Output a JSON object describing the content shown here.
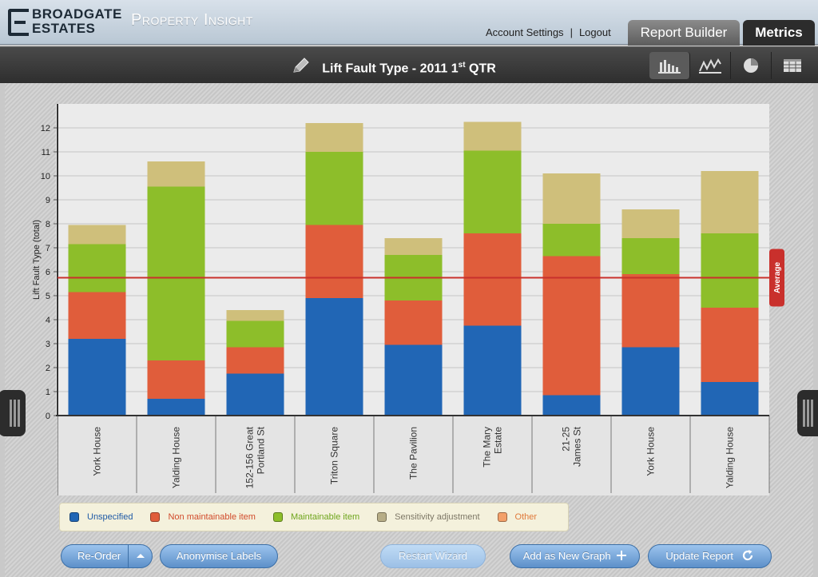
{
  "header": {
    "logo_line1": "BROADGATE",
    "logo_line2": "ESTATES",
    "app_title": "Property Insight",
    "account_settings": "Account Settings",
    "separator": "|",
    "logout": "Logout",
    "tabs": {
      "report_builder": "Report Builder",
      "metrics": "Metrics"
    }
  },
  "toolbar": {
    "title_prefix": "Lift Fault Type - 2011 1",
    "title_sup": "st",
    "title_suffix": " QTR",
    "icons": [
      "bar-chart-icon",
      "line-chart-icon",
      "pie-chart-icon",
      "table-icon"
    ]
  },
  "chart_data": {
    "type": "bar",
    "stacked": true,
    "ylabel": "Lift Fault Type (total)",
    "ylim": [
      0,
      13
    ],
    "yticks": [
      0,
      1,
      2,
      3,
      4,
      5,
      6,
      7,
      8,
      9,
      10,
      11,
      12
    ],
    "categories": [
      "York House",
      "Yalding House",
      "152-156 Great Portland St",
      "Triton Square",
      "The Pavilion",
      "The Mary Estate",
      "21-25 James St",
      "York House",
      "Yalding House"
    ],
    "category_lines": [
      [
        "York House"
      ],
      [
        "Yalding House"
      ],
      [
        "152-156 Great",
        "Portland St"
      ],
      [
        "Triton Square"
      ],
      [
        "The Pavilion"
      ],
      [
        "The Mary",
        "Estate"
      ],
      [
        "21-25",
        "James St"
      ],
      [
        "York House"
      ],
      [
        "Yalding House"
      ]
    ],
    "series": [
      {
        "name": "Unspecified",
        "color": "#2166b5",
        "values": [
          3.2,
          0.7,
          1.75,
          4.9,
          2.95,
          3.75,
          0.85,
          2.85,
          1.4
        ]
      },
      {
        "name": "Non maintainable item",
        "color": "#e05d3b",
        "values": [
          1.95,
          1.6,
          1.1,
          3.05,
          1.85,
          3.85,
          5.8,
          3.05,
          3.1
        ]
      },
      {
        "name": "Maintainable item",
        "color": "#8dbe2a",
        "values": [
          2.0,
          7.25,
          1.1,
          3.05,
          1.9,
          3.45,
          1.35,
          1.5,
          3.1
        ]
      },
      {
        "name": "Sensitivity adjustment",
        "color": "#cfbf7b",
        "values": [
          0.8,
          1.05,
          0.45,
          1.2,
          0.7,
          1.2,
          2.1,
          1.2,
          2.6
        ]
      },
      {
        "name": "Other",
        "color": "#f3a069",
        "values": [
          0,
          0,
          0,
          0,
          0,
          0,
          0,
          0,
          0
        ]
      }
    ],
    "average": {
      "label": "Average",
      "value": 5.75,
      "color": "#c9302c"
    }
  },
  "legend": {
    "items": [
      {
        "label": "Unspecified",
        "color": "#2166b5",
        "text_color": "#1f5aa6"
      },
      {
        "label": "Non maintainable item",
        "color": "#e05d3b",
        "text_color": "#d14a2a"
      },
      {
        "label": "Maintainable item",
        "color": "#8dbe2a",
        "text_color": "#6ea51c"
      },
      {
        "label": "Sensitivity adjustment",
        "color": "#b7ad86",
        "text_color": "#7d7766"
      },
      {
        "label": "Other",
        "color": "#f3a069",
        "text_color": "#e0793a"
      }
    ]
  },
  "buttons": {
    "reorder": "Re-Order",
    "anonymise": "Anonymise Labels",
    "restart": "Restart Wizard",
    "add_graph": "Add as New Graph",
    "update": "Update Report"
  }
}
